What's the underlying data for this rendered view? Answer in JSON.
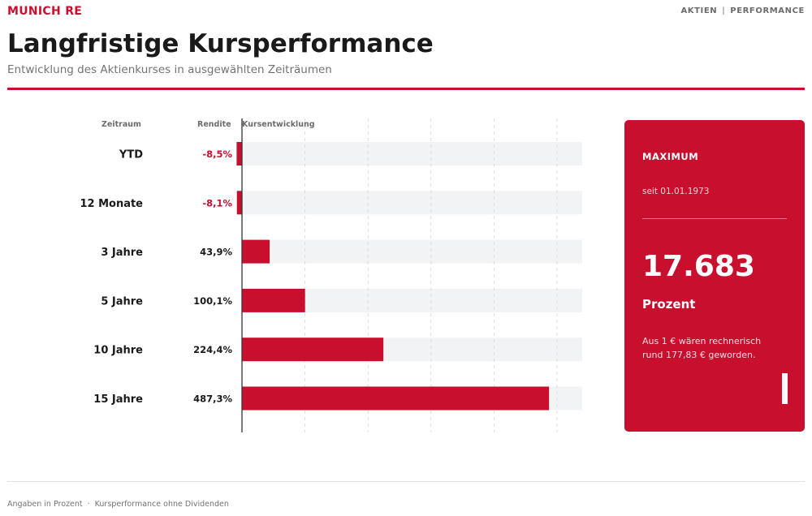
{
  "header": {
    "brand": "MUNICH RE",
    "nav": [
      "AKTIEN",
      "PERFORMANCE"
    ],
    "nav_separator": "|"
  },
  "title": "Langfristige Kursperformance",
  "subtitle": "Entwicklung des Aktienkurses in ausgewählten Zeiträumen",
  "columns": {
    "period": "Zeitraum",
    "return": "Rendite",
    "chart": "Kursentwicklung"
  },
  "chart_data": {
    "type": "bar",
    "orientation": "horizontal",
    "categories": [
      "YTD",
      "12 Monate",
      "3 Jahre",
      "5 Jahre",
      "10 Jahre",
      "15 Jahre"
    ],
    "values": [
      -8.5,
      -8.1,
      43.9,
      100.1,
      224.4,
      487.3
    ],
    "value_labels": [
      "-8,5%",
      "-8,1%",
      "43,9%",
      "100,1%",
      "224,4%",
      "487,3%"
    ],
    "xlim": [
      0,
      540
    ],
    "grid": true,
    "legend": "none",
    "colors": {
      "bar": "#c8102e",
      "track": "#f2f3f5",
      "negative_label": "#c8102e",
      "positive_label": "#1a1a1a",
      "grid": "#dcdcdc",
      "axis": "#333333"
    }
  },
  "card": {
    "label": "MAXIMUM",
    "since": "seit 01.01.1973",
    "value": "17.683",
    "unit": "Prozent",
    "note": "Aus 1 € wären rechnerisch rund 177,83 € geworden.",
    "color": "#c8102e"
  },
  "footer": {
    "items": [
      "Angaben in Prozent",
      "Kursperformance ohne Dividenden"
    ],
    "separator": "·"
  }
}
